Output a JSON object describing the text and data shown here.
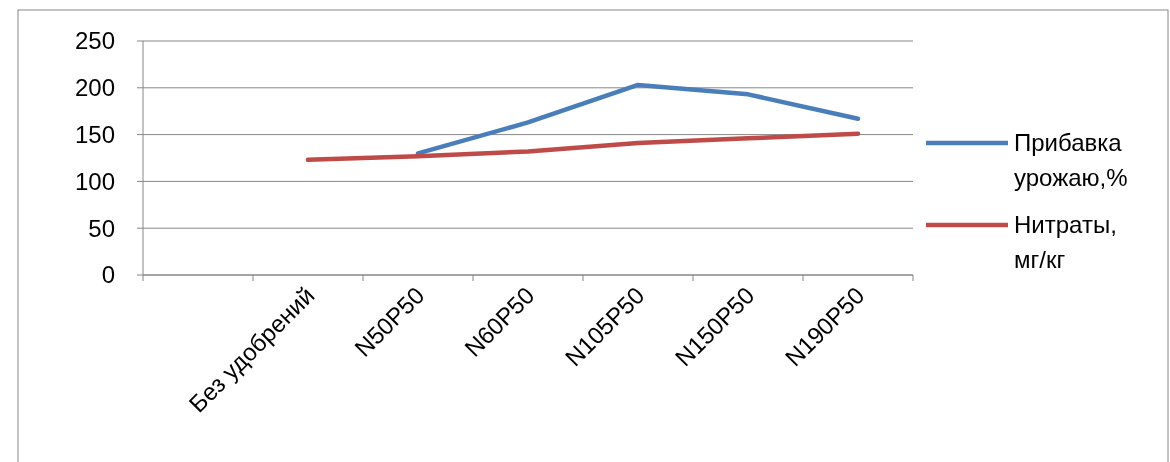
{
  "chart_data": {
    "type": "line",
    "categories": [
      null,
      "Без удобрений",
      "N50P50",
      "N60P50",
      "N105P50",
      "N150P50",
      "N190P50"
    ],
    "series": [
      {
        "name": "Прибавка урожаю,%",
        "color": "#4a7ebb",
        "values": [
          null,
          null,
          130,
          163,
          203,
          193,
          167
        ]
      },
      {
        "name": "Нитраты, мг/кг",
        "color": "#be4b48",
        "values": [
          null,
          123,
          127,
          132,
          141,
          146,
          151
        ]
      }
    ],
    "ylim": [
      0,
      250
    ],
    "yticks": [
      0,
      50,
      100,
      150,
      200,
      250
    ],
    "grid": "y",
    "legend": "right",
    "marker": "none",
    "line_style": "solid"
  }
}
